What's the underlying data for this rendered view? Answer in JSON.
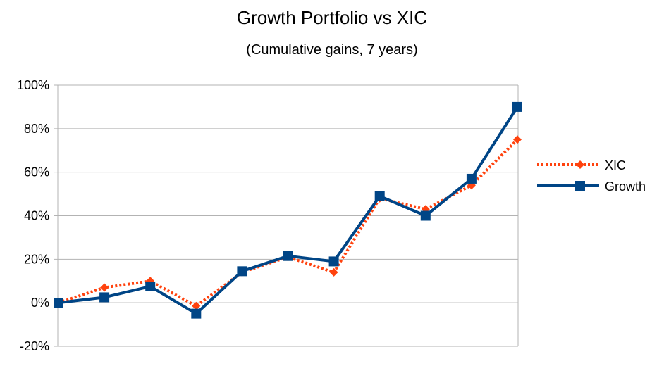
{
  "chart_data": {
    "type": "line",
    "title": "Growth Portfolio vs XIC",
    "subtitle": "(Cumulative gains, 7 years)",
    "xlabel": "",
    "ylabel": "",
    "ylim": [
      -20,
      100
    ],
    "y_ticks": [
      -20,
      0,
      20,
      40,
      60,
      80,
      100
    ],
    "y_tick_labels": [
      "-20%",
      "0%",
      "20%",
      "40%",
      "60%",
      "80%",
      "100%"
    ],
    "x_count": 11,
    "grid": "horizontal",
    "legend_placement": "right",
    "series": [
      {
        "name": "XIC",
        "color": "#ff420e",
        "style": "dotted",
        "marker": "diamond",
        "values": [
          0,
          7,
          10,
          -1.5,
          14,
          21,
          14,
          48,
          43,
          54,
          75
        ]
      },
      {
        "name": "Growth",
        "color": "#004586",
        "style": "solid",
        "marker": "square",
        "values": [
          0,
          2.5,
          7.5,
          -5,
          14.5,
          21.5,
          19,
          49,
          40,
          57,
          90
        ]
      }
    ]
  }
}
